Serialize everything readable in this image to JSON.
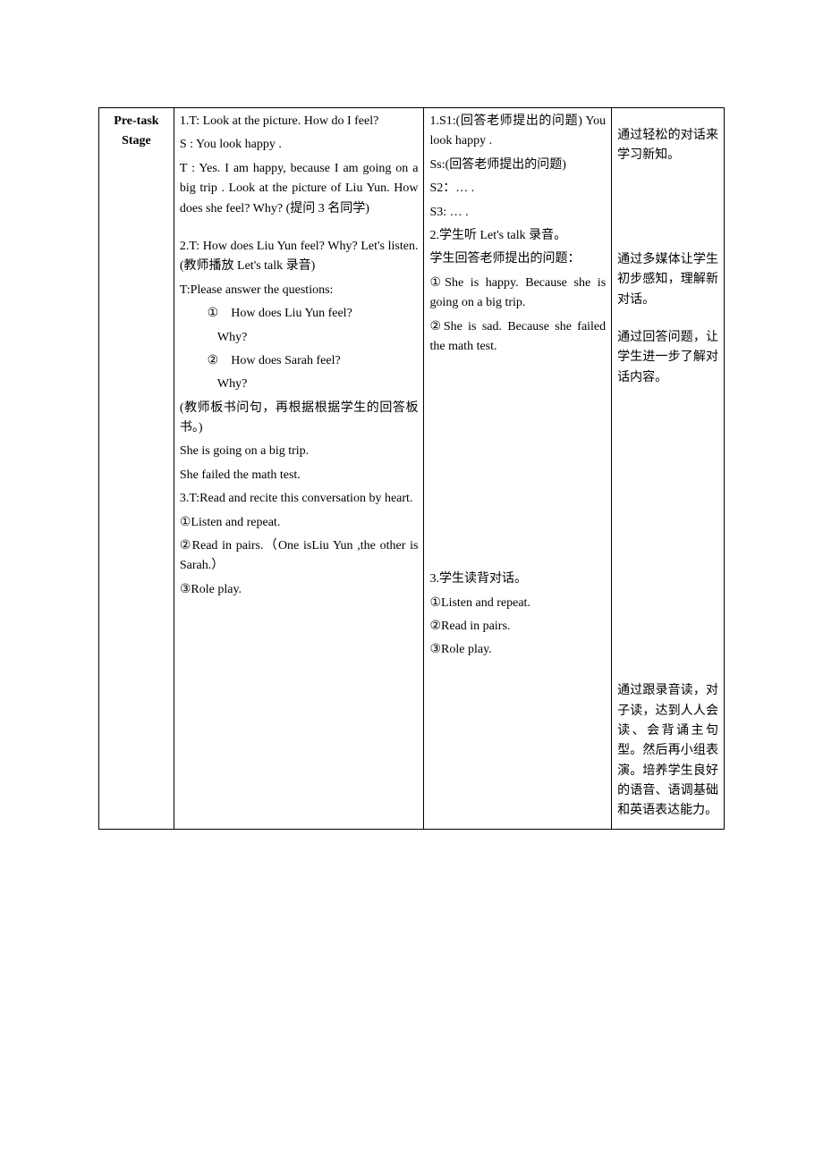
{
  "stage_label_line1": "Pre-task",
  "stage_label_line2": "Stage",
  "teacher": {
    "t1_a": "1.T: Look at the picture. How do I feel?",
    "t1_b": "  S : You look happy .",
    "t1_c": "  T : Yes. I am happy, because I am going on a big trip . Look at the picture of Liu Yun. How does she feel? Why? (提问 3 名同学)",
    "t2_a": "2.T: How does Liu Yun feel? Why? Let's listen.(教师播放 Let's talk 录音)",
    "t2_b": "  T:Please answer the questions:",
    "t2_q1a": "①　How does Liu Yun feel?",
    "t2_q1b": "Why?",
    "t2_q2a": "②　How does Sarah feel?",
    "t2_q2b": "Why?",
    "t2_c": "(教师板书问句，再根据根据学生的回答板书。)",
    "t2_d": "She is going on a big trip.",
    "t2_e": "She failed the math test.",
    "t3_a": "3.T:Read and recite this conversation by heart.",
    "t3_b": "①Listen and repeat.",
    "t3_c": "②Read in pairs.（One isLiu Yun ,the other is Sarah.）",
    "t3_d": "③Role play."
  },
  "student": {
    "s1_a": "1.S1:(回答老师提出的问题) You look happy .",
    "s1_b": "Ss:(回答老师提出的问题)",
    "s1_c": "S2：… .",
    "s1_d": "S3: … .",
    "s2_a": "2.学生听 Let's talk 录音。",
    "s2_b": "学生回答老师提出的问题：",
    "s2_c": "①She is happy. Because she is going on a big trip.",
    "s2_d": "②She is sad. Because she failed the math test.",
    "s3_a": "3.学生读背对话。",
    "s3_b": "①Listen and repeat.",
    "s3_c": "②Read in pairs.",
    "s3_d": "③Role play."
  },
  "intent": {
    "i1": "通过轻松的对话来学习新知。",
    "i2": "通过多媒体让学生初步感知，理解新对话。",
    "i3": "通过回答问题，让学生进一步了解对话内容。",
    "i4": "通过跟录音读，对子读，达到人人会读、会背诵主句型。然后再小组表演。培养学生良好的语音、语调基础和英语表达能力。"
  }
}
